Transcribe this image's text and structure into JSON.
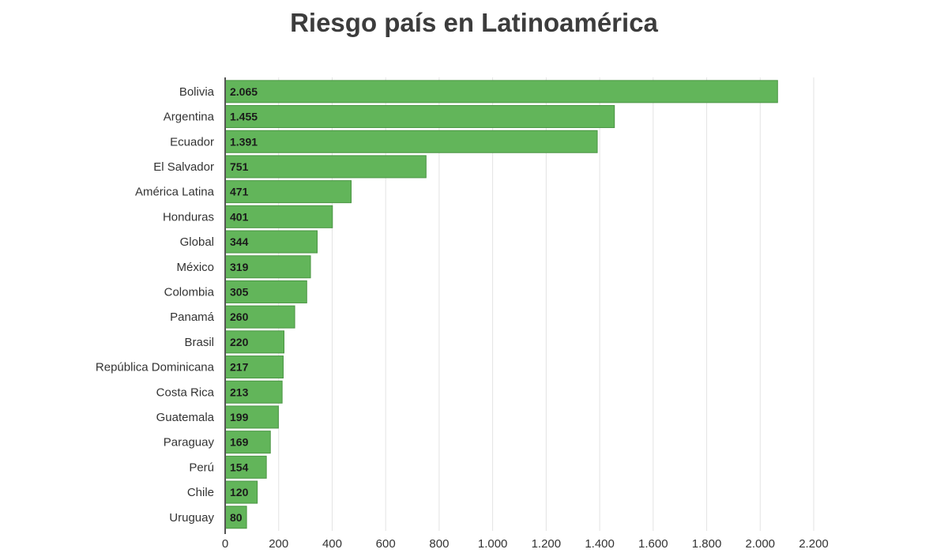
{
  "chart_data": {
    "type": "bar",
    "orientation": "horizontal",
    "title": "Riesgo país en Latinoamérica",
    "xlabel": "",
    "ylabel": "",
    "categories": [
      "Bolivia",
      "Argentina",
      "Ecuador",
      "El Salvador",
      "América Latina",
      "Honduras",
      "Global",
      "México",
      "Colombia",
      "Panamá",
      "Brasil",
      "República Dominicana",
      "Costa Rica",
      "Guatemala",
      "Paraguay",
      "Perú",
      "Chile",
      "Uruguay"
    ],
    "values": [
      2065,
      1455,
      1391,
      751,
      471,
      401,
      344,
      319,
      305,
      260,
      220,
      217,
      213,
      199,
      169,
      154,
      120,
      80
    ],
    "value_labels": [
      "2.065",
      "1.455",
      "1.391",
      "751",
      "471",
      "401",
      "344",
      "319",
      "305",
      "260",
      "220",
      "217",
      "213",
      "199",
      "169",
      "154",
      "120",
      "80"
    ],
    "xlim": [
      0,
      2200
    ],
    "xticks": [
      0,
      200,
      400,
      600,
      800,
      1000,
      1200,
      1400,
      1600,
      1800,
      2000,
      2200
    ],
    "xtick_labels": [
      "0",
      "200",
      "400",
      "600",
      "800",
      "1.000",
      "1.200",
      "1.400",
      "1.600",
      "1.800",
      "2.000",
      "2.200"
    ],
    "grid": "vertical",
    "legend": "none",
    "colors": {
      "bar": "#62b55a",
      "bar_border": "#4a9443",
      "grid": "#e3e3e3",
      "axis": "#555555"
    }
  }
}
